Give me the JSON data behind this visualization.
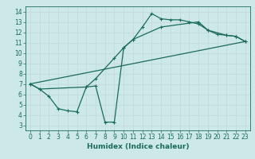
{
  "xlabel": "Humidex (Indice chaleur)",
  "bg_color": "#cce8e8",
  "grid_color": "#b0d4d4",
  "line_color": "#1a6b5a",
  "xlim": [
    -0.5,
    23.5
  ],
  "ylim": [
    2.5,
    14.5
  ],
  "xticks": [
    0,
    1,
    2,
    3,
    4,
    5,
    6,
    7,
    8,
    9,
    10,
    11,
    12,
    13,
    14,
    15,
    16,
    17,
    18,
    19,
    20,
    21,
    22,
    23
  ],
  "yticks": [
    3,
    4,
    5,
    6,
    7,
    8,
    9,
    10,
    11,
    12,
    13,
    14
  ],
  "series": [
    {
      "x": [
        0,
        1,
        2,
        3,
        4,
        5,
        6,
        7,
        8,
        9,
        10,
        11,
        12,
        13,
        14,
        15,
        16,
        17,
        18,
        19,
        20,
        21,
        22,
        23
      ],
      "y": [
        7.0,
        6.5,
        5.8,
        4.6,
        4.4,
        4.3,
        6.7,
        6.8,
        3.3,
        3.3,
        10.5,
        11.3,
        12.5,
        13.8,
        13.3,
        13.2,
        13.2,
        13.0,
        12.8,
        12.2,
        11.8,
        11.7,
        11.6,
        11.1
      ],
      "marker": "+",
      "linewidth": 0.9
    },
    {
      "x": [
        0,
        1,
        6,
        7,
        9,
        10,
        11,
        14,
        18,
        19,
        21,
        22,
        23
      ],
      "y": [
        7.0,
        6.5,
        6.7,
        7.5,
        9.5,
        10.5,
        11.3,
        12.5,
        13.0,
        12.2,
        11.7,
        11.6,
        11.1
      ],
      "marker": "+",
      "linewidth": 0.9
    },
    {
      "x": [
        0,
        23
      ],
      "y": [
        7.0,
        11.1
      ],
      "marker": null,
      "linewidth": 0.9
    }
  ]
}
